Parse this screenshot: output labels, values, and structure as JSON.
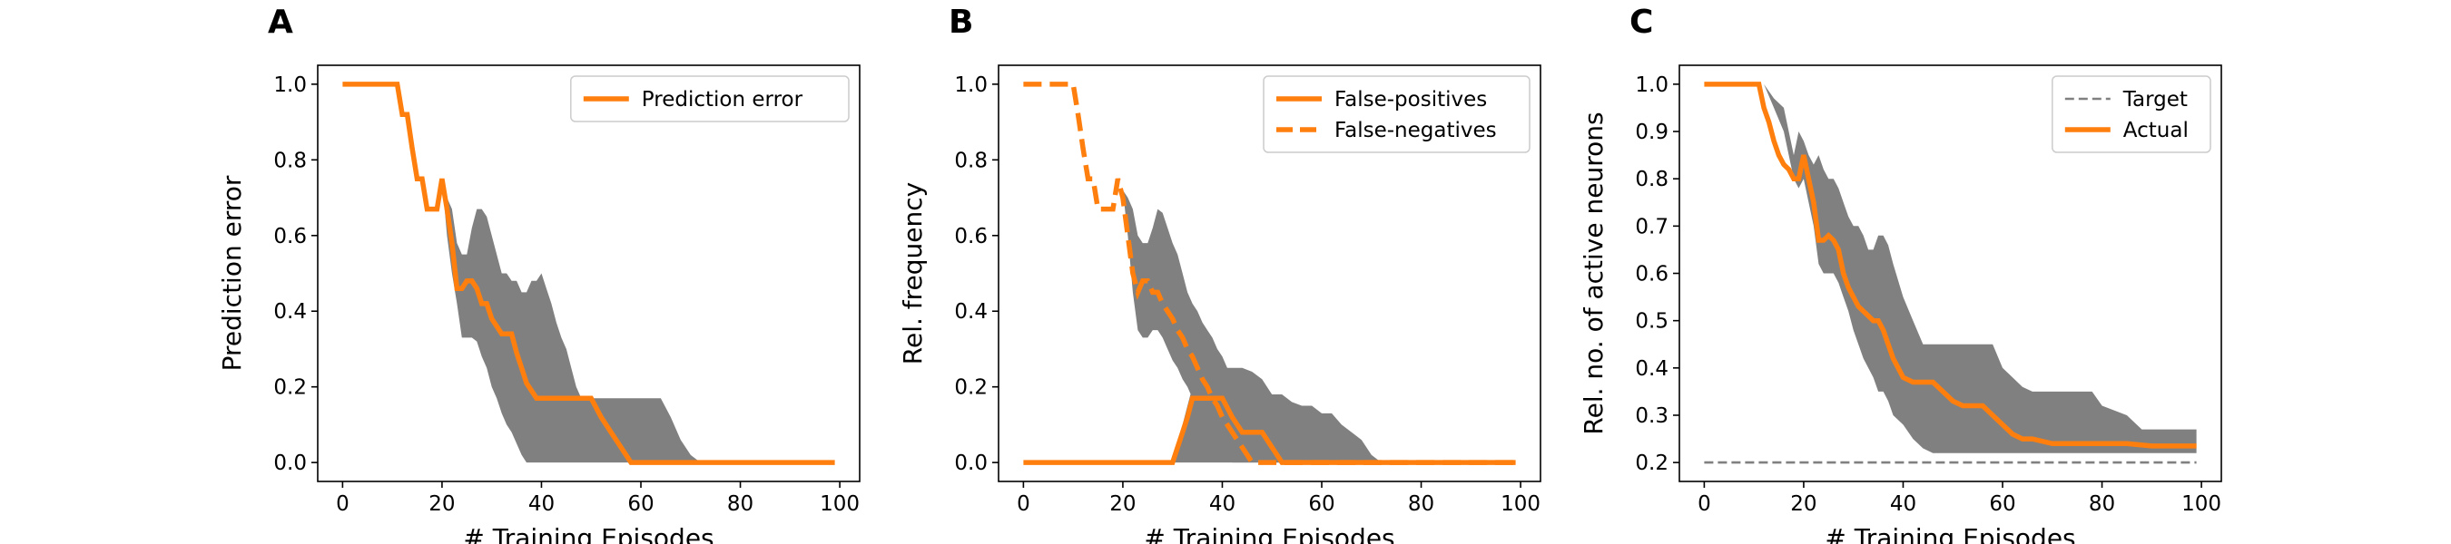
{
  "chart_data": [
    {
      "panel_label": "A",
      "type": "line",
      "xlabel": "# Training Episodes",
      "ylabel": "Prediction error",
      "xlim": [
        -5,
        104
      ],
      "ylim": [
        -0.05,
        1.05
      ],
      "xticks": [
        0,
        20,
        40,
        60,
        80,
        100
      ],
      "xtick_labels": [
        "0",
        "20",
        "40",
        "60",
        "80",
        "100"
      ],
      "yticks": [
        0,
        0.2,
        0.4,
        0.6,
        0.8,
        1.0
      ],
      "ytick_labels": [
        "0.0",
        "0.2",
        "0.4",
        "0.6",
        "0.8",
        "1.0"
      ],
      "legend_position": "top-right",
      "series": [
        {
          "name": "Prediction error",
          "style": "solid",
          "color": "#ff7f0e",
          "x": [
            0,
            11,
            12,
            13,
            14,
            15,
            16,
            17,
            18,
            19,
            20,
            21,
            22,
            23,
            24,
            25,
            26,
            27,
            28,
            29,
            30,
            31,
            32,
            33,
            34,
            35,
            36,
            37,
            38,
            39,
            40,
            41,
            42,
            44,
            46,
            48,
            50,
            52,
            54,
            56,
            58,
            60,
            70,
            80,
            90,
            99
          ],
          "y": [
            1.0,
            1.0,
            0.92,
            0.92,
            0.83,
            0.75,
            0.75,
            0.67,
            0.67,
            0.67,
            0.75,
            0.67,
            0.58,
            0.46,
            0.46,
            0.48,
            0.48,
            0.46,
            0.42,
            0.42,
            0.38,
            0.36,
            0.34,
            0.34,
            0.34,
            0.29,
            0.25,
            0.21,
            0.19,
            0.17,
            0.17,
            0.17,
            0.17,
            0.17,
            0.17,
            0.17,
            0.17,
            0.12,
            0.08,
            0.04,
            0.0,
            0.0,
            0.0,
            0.0,
            0.0,
            0.0
          ]
        }
      ],
      "band": {
        "color": "#808080",
        "x": [
          19,
          20,
          21,
          22,
          23,
          24,
          25,
          26,
          27,
          28,
          29,
          30,
          31,
          32,
          33,
          34,
          35,
          36,
          37,
          38,
          39,
          40,
          41,
          42,
          43,
          44,
          45,
          46,
          47,
          48,
          49,
          50,
          52,
          54,
          56,
          58,
          60,
          62,
          64,
          66,
          68,
          70,
          72
        ],
        "upper": [
          0.67,
          0.75,
          0.7,
          0.67,
          0.58,
          0.55,
          0.55,
          0.62,
          0.67,
          0.67,
          0.65,
          0.6,
          0.55,
          0.5,
          0.5,
          0.48,
          0.48,
          0.45,
          0.45,
          0.48,
          0.48,
          0.5,
          0.46,
          0.42,
          0.37,
          0.33,
          0.3,
          0.25,
          0.2,
          0.17,
          0.17,
          0.17,
          0.17,
          0.17,
          0.17,
          0.17,
          0.17,
          0.17,
          0.17,
          0.12,
          0.06,
          0.02,
          0.0
        ],
        "lower": [
          0.67,
          0.75,
          0.6,
          0.5,
          0.42,
          0.33,
          0.33,
          0.33,
          0.32,
          0.28,
          0.25,
          0.2,
          0.17,
          0.13,
          0.1,
          0.08,
          0.05,
          0.02,
          0.0,
          0.0,
          0.0,
          0.0,
          0.0,
          0.0,
          0.0,
          0.0,
          0.0,
          0.0,
          0.0,
          0.0,
          0.0,
          0.0,
          0.0,
          0.0,
          0.0,
          0.0,
          0.0,
          0.0,
          0.0,
          0.0,
          0.0,
          0.0,
          0.0
        ]
      }
    },
    {
      "panel_label": "B",
      "type": "line",
      "xlabel": "# Training Episodes",
      "ylabel": "Rel. frequency",
      "xlim": [
        -5,
        104
      ],
      "ylim": [
        -0.05,
        1.05
      ],
      "xticks": [
        0,
        20,
        40,
        60,
        80,
        100
      ],
      "xtick_labels": [
        "0",
        "20",
        "40",
        "60",
        "80",
        "100"
      ],
      "yticks": [
        0,
        0.2,
        0.4,
        0.6,
        0.8,
        1.0
      ],
      "ytick_labels": [
        "0.0",
        "0.2",
        "0.4",
        "0.6",
        "0.8",
        "1.0"
      ],
      "legend_position": "top-right",
      "series": [
        {
          "name": "False-positives",
          "style": "solid",
          "color": "#ff7f0e",
          "x": [
            0,
            30,
            31,
            32,
            33,
            34,
            35,
            38,
            40,
            42,
            44,
            46,
            48,
            50,
            52,
            54,
            56,
            60,
            70,
            80,
            90,
            99
          ],
          "y": [
            0.0,
            0.0,
            0.04,
            0.08,
            0.12,
            0.17,
            0.17,
            0.17,
            0.17,
            0.12,
            0.08,
            0.08,
            0.08,
            0.04,
            0.0,
            0.0,
            0.0,
            0.0,
            0.0,
            0.0,
            0.0,
            0.0
          ],
          "band": {
            "color": "#808080",
            "x": [
              29,
              30,
              31,
              32,
              33,
              34,
              36,
              38,
              40,
              42,
              44,
              46,
              48,
              50,
              52,
              54,
              56,
              58,
              60,
              62,
              64,
              66,
              68,
              70,
              72
            ],
            "upper": [
              0.0,
              0.0,
              0.05,
              0.1,
              0.15,
              0.2,
              0.22,
              0.25,
              0.25,
              0.25,
              0.25,
              0.24,
              0.22,
              0.18,
              0.18,
              0.16,
              0.15,
              0.15,
              0.13,
              0.13,
              0.1,
              0.08,
              0.06,
              0.02,
              0.0
            ],
            "lower": [
              0.0,
              0.0,
              0.0,
              0.0,
              0.0,
              0.0,
              0.0,
              0.0,
              0.0,
              0.0,
              0.0,
              0.0,
              0.0,
              0.0,
              0.0,
              0.0,
              0.0,
              0.0,
              0.0,
              0.0,
              0.0,
              0.0,
              0.0,
              0.0,
              0.0
            ]
          }
        },
        {
          "name": "False-negatives",
          "style": "dashed",
          "color": "#ff7f0e",
          "x": [
            0,
            10,
            11,
            12,
            13,
            14,
            15,
            16,
            17,
            18,
            19,
            20,
            21,
            22,
            23,
            24,
            25,
            26,
            27,
            28,
            29,
            30,
            31,
            32,
            33,
            34,
            35,
            36,
            37,
            38,
            39,
            40,
            41,
            42,
            43,
            44,
            45,
            46,
            47,
            48,
            50,
            60,
            70,
            80,
            90,
            99
          ],
          "y": [
            1.0,
            1.0,
            0.92,
            0.83,
            0.75,
            0.75,
            0.67,
            0.67,
            0.67,
            0.67,
            0.75,
            0.7,
            0.6,
            0.5,
            0.45,
            0.48,
            0.48,
            0.45,
            0.45,
            0.42,
            0.4,
            0.38,
            0.35,
            0.33,
            0.3,
            0.28,
            0.25,
            0.22,
            0.2,
            0.17,
            0.15,
            0.12,
            0.1,
            0.08,
            0.06,
            0.04,
            0.02,
            0.0,
            0.0,
            0.0,
            0.0,
            0.0,
            0.0,
            0.0,
            0.0,
            0.0
          ]
        }
      ],
      "band": {
        "color": "#808080",
        "x": [
          19,
          20,
          21,
          22,
          23,
          24,
          25,
          26,
          27,
          28,
          29,
          30,
          31,
          32,
          33,
          34,
          35,
          36,
          37,
          38,
          39,
          40,
          41,
          42,
          43,
          44,
          45,
          46,
          47,
          48,
          49,
          50,
          51,
          52
        ],
        "upper": [
          0.75,
          0.72,
          0.7,
          0.67,
          0.6,
          0.58,
          0.58,
          0.62,
          0.67,
          0.66,
          0.62,
          0.58,
          0.55,
          0.5,
          0.45,
          0.42,
          0.4,
          0.37,
          0.35,
          0.33,
          0.3,
          0.28,
          0.25,
          0.22,
          0.2,
          0.18,
          0.15,
          0.12,
          0.1,
          0.08,
          0.06,
          0.04,
          0.02,
          0.0
        ],
        "lower": [
          0.75,
          0.72,
          0.6,
          0.45,
          0.35,
          0.33,
          0.33,
          0.35,
          0.35,
          0.33,
          0.3,
          0.27,
          0.25,
          0.22,
          0.2,
          0.17,
          0.15,
          0.12,
          0.1,
          0.08,
          0.06,
          0.04,
          0.02,
          0.0,
          0.0,
          0.0,
          0.0,
          0.0,
          0.0,
          0.0,
          0.0,
          0.0,
          0.0,
          0.0
        ]
      }
    },
    {
      "panel_label": "C",
      "type": "line",
      "xlabel": "# Training Episodes",
      "ylabel": "Rel. no. of active neurons",
      "xlim": [
        -5,
        104
      ],
      "ylim": [
        0.16,
        1.04
      ],
      "xticks": [
        0,
        20,
        40,
        60,
        80,
        100
      ],
      "xtick_labels": [
        "0",
        "20",
        "40",
        "60",
        "80",
        "100"
      ],
      "yticks": [
        0.2,
        0.3,
        0.4,
        0.5,
        0.6,
        0.7,
        0.8,
        0.9,
        1.0
      ],
      "ytick_labels": [
        "0.2",
        "0.3",
        "0.4",
        "0.5",
        "0.6",
        "0.7",
        "0.8",
        "0.9",
        "1.0"
      ],
      "legend_position": "top-right",
      "series": [
        {
          "name": "Target",
          "style": "dashed",
          "color": "#808080",
          "x": [
            0,
            99
          ],
          "y": [
            0.2,
            0.2
          ]
        },
        {
          "name": "Actual",
          "style": "solid",
          "color": "#ff7f0e",
          "x": [
            0,
            11,
            12,
            13,
            14,
            15,
            16,
            17,
            18,
            19,
            20,
            21,
            22,
            23,
            24,
            25,
            26,
            27,
            28,
            29,
            30,
            31,
            32,
            33,
            34,
            35,
            36,
            37,
            38,
            39,
            40,
            42,
            44,
            46,
            48,
            50,
            52,
            54,
            56,
            58,
            60,
            62,
            64,
            66,
            70,
            75,
            80,
            85,
            90,
            99
          ],
          "y": [
            1.0,
            1.0,
            0.95,
            0.92,
            0.88,
            0.85,
            0.83,
            0.82,
            0.8,
            0.8,
            0.85,
            0.8,
            0.75,
            0.67,
            0.67,
            0.68,
            0.67,
            0.65,
            0.6,
            0.57,
            0.55,
            0.53,
            0.52,
            0.51,
            0.5,
            0.5,
            0.48,
            0.45,
            0.42,
            0.4,
            0.38,
            0.37,
            0.37,
            0.37,
            0.35,
            0.33,
            0.32,
            0.32,
            0.32,
            0.3,
            0.28,
            0.26,
            0.25,
            0.25,
            0.24,
            0.24,
            0.24,
            0.24,
            0.235,
            0.235
          ]
        }
      ],
      "band": {
        "color": "#808080",
        "x": [
          10,
          12,
          14,
          16,
          17,
          18,
          19,
          20,
          21,
          22,
          23,
          24,
          25,
          26,
          27,
          28,
          29,
          30,
          31,
          32,
          33,
          34,
          35,
          36,
          37,
          38,
          40,
          42,
          44,
          46,
          48,
          50,
          52,
          54,
          56,
          58,
          60,
          62,
          64,
          66,
          68,
          70,
          72,
          74,
          76,
          78,
          80,
          85,
          88,
          90,
          95,
          99
        ],
        "upper": [
          1.0,
          1.0,
          0.97,
          0.95,
          0.9,
          0.85,
          0.9,
          0.88,
          0.85,
          0.83,
          0.85,
          0.82,
          0.8,
          0.8,
          0.78,
          0.75,
          0.72,
          0.7,
          0.7,
          0.68,
          0.65,
          0.65,
          0.68,
          0.68,
          0.66,
          0.62,
          0.55,
          0.5,
          0.45,
          0.45,
          0.45,
          0.45,
          0.45,
          0.45,
          0.45,
          0.45,
          0.4,
          0.38,
          0.36,
          0.35,
          0.35,
          0.35,
          0.35,
          0.35,
          0.35,
          0.35,
          0.32,
          0.3,
          0.27,
          0.27,
          0.27,
          0.27
        ],
        "lower": [
          1.0,
          1.0,
          0.95,
          0.9,
          0.85,
          0.8,
          0.78,
          0.8,
          0.75,
          0.7,
          0.62,
          0.6,
          0.6,
          0.6,
          0.58,
          0.55,
          0.52,
          0.48,
          0.45,
          0.42,
          0.4,
          0.38,
          0.35,
          0.35,
          0.33,
          0.3,
          0.28,
          0.25,
          0.23,
          0.22,
          0.22,
          0.22,
          0.22,
          0.22,
          0.22,
          0.22,
          0.22,
          0.22,
          0.22,
          0.22,
          0.22,
          0.22,
          0.22,
          0.22,
          0.22,
          0.22,
          0.22,
          0.22,
          0.22,
          0.22,
          0.22,
          0.22
        ]
      }
    }
  ]
}
